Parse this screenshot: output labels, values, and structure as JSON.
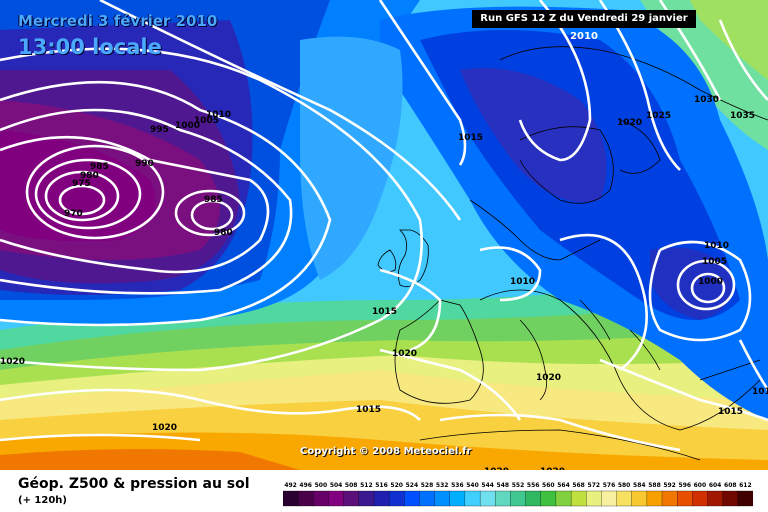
{
  "header": {
    "date_label": "Mercredi 3 février 2010",
    "time_label": "13:00 locale",
    "run_label": "Run GFS 12 Z du Vendredi 29 janvier 2010"
  },
  "copyright": "Copyright © 2008 Meteociel.fr",
  "footer": {
    "caption": "Géop. Z500 & pression au sol",
    "subcaption": "(+ 120h)"
  },
  "scale": {
    "values": [
      "492",
      "496",
      "500",
      "504",
      "508",
      "512",
      "516",
      "520",
      "524",
      "528",
      "532",
      "536",
      "540",
      "544",
      "548",
      "552",
      "556",
      "560",
      "564",
      "568",
      "572",
      "576",
      "580",
      "584",
      "588",
      "592",
      "596",
      "600",
      "604",
      "608",
      "612"
    ],
    "colors": [
      "#2a0030",
      "#4a0048",
      "#660066",
      "#800080",
      "#5a1078",
      "#3a1890",
      "#2020b0",
      "#1030d0",
      "#0050ff",
      "#0070ff",
      "#0090ff",
      "#00b0ff",
      "#40d0ff",
      "#70e0f0",
      "#60d8c0",
      "#40c890",
      "#30b860",
      "#40c040",
      "#80d040",
      "#c0e040",
      "#e8f080",
      "#f8f0a0",
      "#f8e060",
      "#f8c830",
      "#f8a000",
      "#f07800",
      "#e85000",
      "#d03000",
      "#a01800",
      "#700800",
      "#400000"
    ]
  },
  "isobars": [
    "970",
    "975",
    "980",
    "985",
    "990",
    "995",
    "1000",
    "1005",
    "1010",
    "985",
    "980",
    "1015",
    "1020",
    "1025",
    "1030",
    "1035",
    "1010",
    "1005",
    "1000",
    "1010",
    "1015",
    "1020",
    "1015",
    "1020",
    "1020",
    "1020",
    "1020",
    "1020",
    "1015",
    "1015"
  ]
}
